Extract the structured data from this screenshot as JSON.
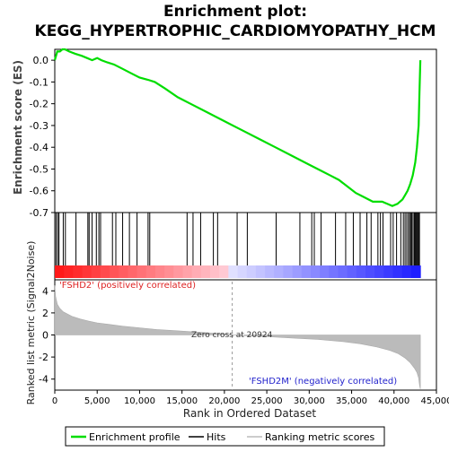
{
  "title_line1": "Enrichment plot:",
  "title_line2": "KEGG_HYPERTROPHIC_CARDIOMYOPATHY_HCM",
  "chart_data": {
    "type": "line",
    "top_panel": {
      "ylabel": "Enrichment score (ES)",
      "ylim": [
        -0.7,
        0.05
      ],
      "yticks": [
        "0.0",
        "-0.1",
        "-0.2",
        "-0.3",
        "-0.4",
        "-0.5",
        "-0.6",
        "-0.7"
      ],
      "ytick_values": [
        0.0,
        -0.1,
        -0.2,
        -0.3,
        -0.4,
        -0.5,
        -0.6,
        -0.7
      ],
      "series": [
        {
          "name": "Enrichment profile",
          "color": "#00dd00",
          "x": [
            0,
            300,
            600,
            900,
            1200,
            1700,
            2400,
            3200,
            3800,
            4400,
            5000,
            5500,
            6200,
            7000,
            8000,
            9000,
            10000,
            11000,
            11800,
            13000,
            14500,
            16000,
            18000,
            20000,
            22000,
            24000,
            26000,
            28000,
            30000,
            31500,
            32500,
            33500,
            34500,
            35500,
            36500,
            37500,
            38200,
            38600,
            39200,
            39800,
            40400,
            41000,
            41300,
            41600,
            41900,
            42200,
            42500,
            42700,
            42900,
            43000,
            43100
          ],
          "y": [
            0.0,
            0.04,
            0.04,
            0.05,
            0.05,
            0.04,
            0.03,
            0.02,
            0.01,
            0.0,
            0.01,
            0.0,
            -0.01,
            -0.02,
            -0.04,
            -0.06,
            -0.08,
            -0.09,
            -0.1,
            -0.13,
            -0.17,
            -0.2,
            -0.24,
            -0.28,
            -0.32,
            -0.36,
            -0.4,
            -0.44,
            -0.48,
            -0.51,
            -0.53,
            -0.55,
            -0.58,
            -0.61,
            -0.63,
            -0.65,
            -0.65,
            -0.65,
            -0.66,
            -0.67,
            -0.66,
            -0.64,
            -0.62,
            -0.6,
            -0.57,
            -0.53,
            -0.47,
            -0.4,
            -0.3,
            -0.15,
            0.0
          ]
        }
      ]
    },
    "hits": [
      150,
      350,
      500,
      1000,
      1250,
      2500,
      3900,
      4050,
      4400,
      4900,
      5200,
      5400,
      6800,
      7200,
      8000,
      8800,
      9700,
      11000,
      11200,
      15600,
      16300,
      17200,
      18700,
      19200,
      21500,
      22700,
      26100,
      28900,
      30300,
      30600,
      31400,
      33100,
      34300,
      35200,
      36000,
      36800,
      37300,
      38100,
      38400,
      38700,
      39600,
      39900,
      40300,
      40800,
      41100,
      41300,
      41500,
      41700,
      41850,
      42000,
      42100,
      42250,
      42400,
      42500,
      42600,
      42700,
      42800,
      42900,
      43000
    ],
    "bottom_panel": {
      "ylabel": "Ranked list metric (Signal2Noise)",
      "xlabel": "Rank in Ordered Dataset",
      "xlim": [
        0,
        45000
      ],
      "ylim": [
        -5,
        5
      ],
      "xticks": [
        "0",
        "5,000",
        "10,000",
        "15,000",
        "20,000",
        "25,000",
        "30,000",
        "35,000",
        "40,000",
        "45,000"
      ],
      "xtick_values": [
        0,
        5000,
        10000,
        15000,
        20000,
        25000,
        30000,
        35000,
        40000,
        45000
      ],
      "yticks": [
        "4",
        "2",
        "0",
        "-2",
        "-4"
      ],
      "ytick_values": [
        4,
        2,
        0,
        -2,
        -4
      ],
      "metric_x": [
        0,
        100,
        300,
        600,
        1000,
        1500,
        2000,
        3000,
        4000,
        5000,
        6500,
        8000,
        10000,
        12000,
        14000,
        16000,
        18000,
        20000,
        20924,
        22000,
        25000,
        28000,
        31000,
        34000,
        36000,
        38000,
        39500,
        40500,
        41300,
        41900,
        42400,
        42700,
        42900,
        43000,
        43100
      ],
      "metric_y": [
        4.5,
        3.5,
        2.8,
        2.4,
        2.1,
        1.9,
        1.7,
        1.45,
        1.25,
        1.1,
        0.95,
        0.8,
        0.65,
        0.5,
        0.4,
        0.3,
        0.2,
        0.08,
        0.0,
        -0.05,
        -0.15,
        -0.28,
        -0.4,
        -0.6,
        -0.8,
        -1.1,
        -1.4,
        -1.7,
        -2.1,
        -2.5,
        -3.0,
        -3.4,
        -3.9,
        -4.5,
        -4.9
      ],
      "positive_label": "'FSHD2' (positively correlated)",
      "negative_label": "'FSHD2M' (negatively correlated)",
      "zero_cross_label": "Zero cross at 20924",
      "zero_cross": 20924
    },
    "legend": {
      "placement": "bottom",
      "items": [
        {
          "label": "Enrichment profile",
          "color": "#00dd00"
        },
        {
          "label": "Hits",
          "color": "#000000"
        },
        {
          "label": "Ranking metric scores",
          "color": "#bbbbbb"
        }
      ]
    }
  }
}
